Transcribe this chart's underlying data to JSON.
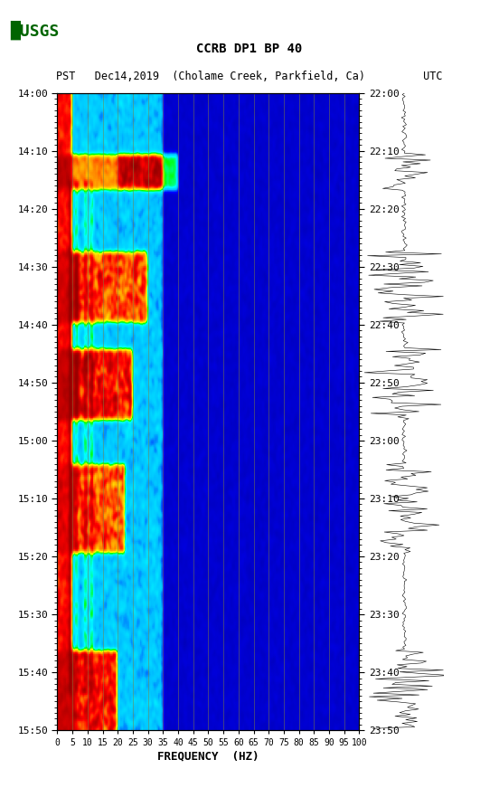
{
  "title_line1": "CCRB DP1 BP 40",
  "title_line2": "PST   Dec14,2019  (Cholame Creek, Parkfield, Ca)         UTC",
  "xlabel": "FREQUENCY  (HZ)",
  "freq_ticks": [
    0,
    5,
    10,
    15,
    20,
    25,
    30,
    35,
    40,
    45,
    50,
    55,
    60,
    65,
    70,
    75,
    80,
    85,
    90,
    95,
    100
  ],
  "left_time_labels": [
    "14:00",
    "14:10",
    "14:20",
    "14:30",
    "14:40",
    "14:50",
    "15:00",
    "15:10",
    "15:20",
    "15:30",
    "15:40",
    "15:50"
  ],
  "right_time_labels": [
    "22:00",
    "22:10",
    "22:20",
    "22:30",
    "22:40",
    "22:50",
    "23:00",
    "23:10",
    "23:20",
    "23:30",
    "23:40",
    "23:50"
  ],
  "spectrogram_freq_max": 100,
  "spectrogram_time_steps": 120,
  "background_color": "#ffffff",
  "grid_color": "#808040",
  "vertical_line_freqs": [
    5,
    10,
    15,
    20,
    25,
    30,
    35,
    40,
    45,
    50,
    55,
    60,
    65,
    70,
    75,
    80,
    85,
    90,
    95,
    100
  ]
}
